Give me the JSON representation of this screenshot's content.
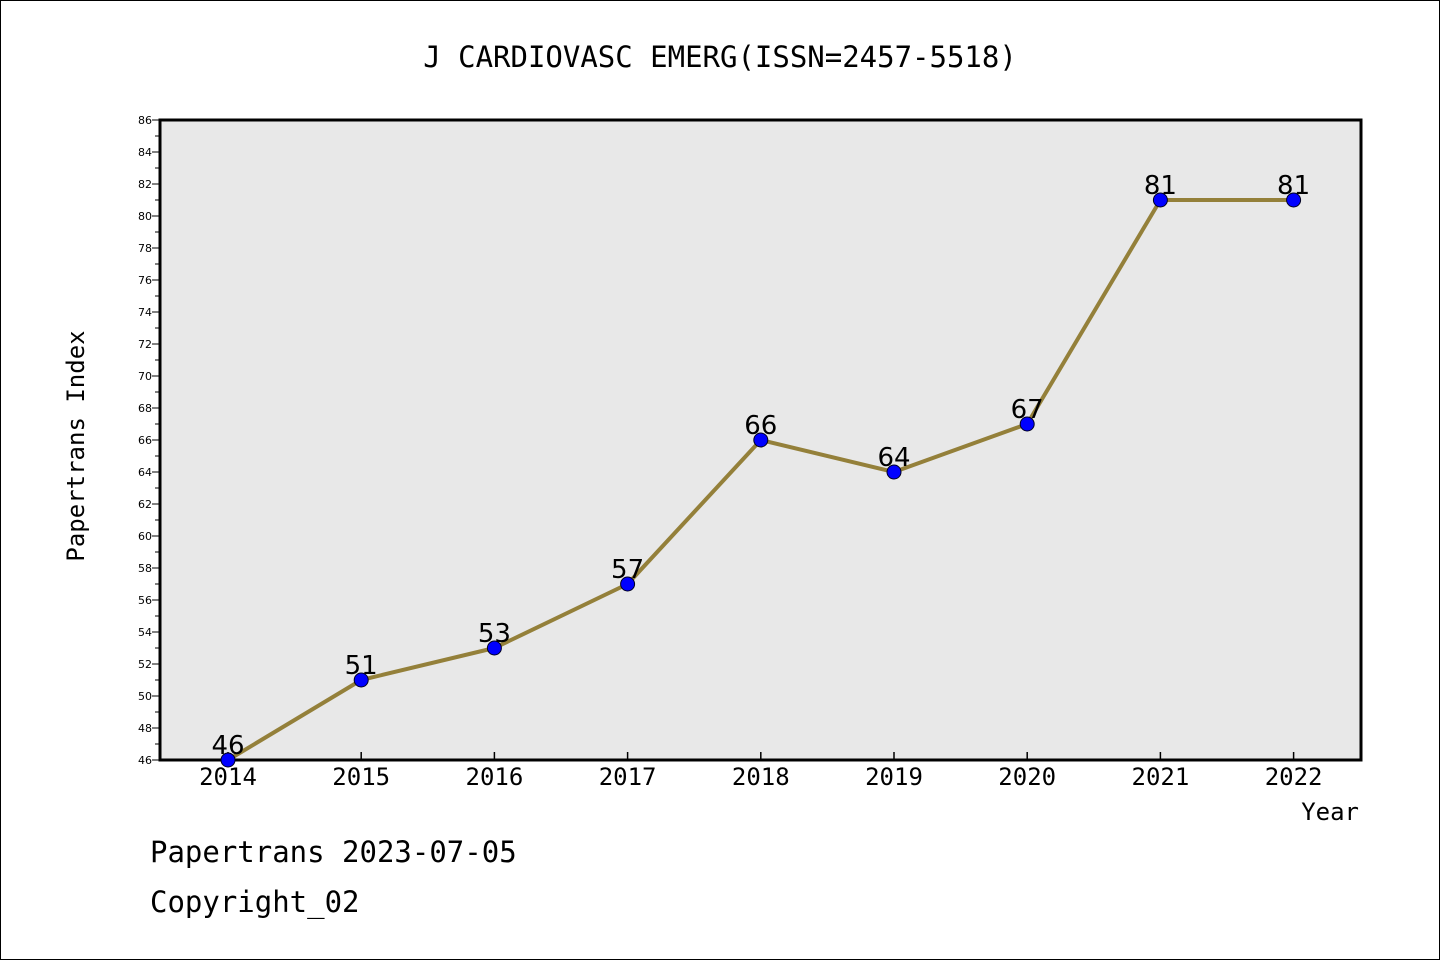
{
  "chart_data": {
    "type": "line",
    "title": "J CARDIOVASC EMERG(ISSN=2457-5518)",
    "xlabel": "Year",
    "ylabel": "Papertrans Index",
    "x": [
      "2014",
      "2015",
      "2016",
      "2017",
      "2018",
      "2019",
      "2020",
      "2021",
      "2022"
    ],
    "series": [
      {
        "values": [
          46,
          51,
          53,
          57,
          66,
          64,
          67,
          81,
          81
        ]
      }
    ],
    "ylim": [
      46,
      86
    ],
    "yticks": [
      46,
      48,
      50,
      52,
      54,
      56,
      58,
      60,
      62,
      64,
      66,
      68,
      70,
      72,
      74,
      76,
      78,
      80,
      82,
      84,
      86
    ],
    "line_color": "#94803a",
    "marker_color": "#0000ff",
    "plot_background": "#e8e8e8",
    "grid": false,
    "data_labels": true
  },
  "footer": {
    "date_line": "Papertrans 2023-07-05",
    "copyright": "Copyright_02"
  }
}
